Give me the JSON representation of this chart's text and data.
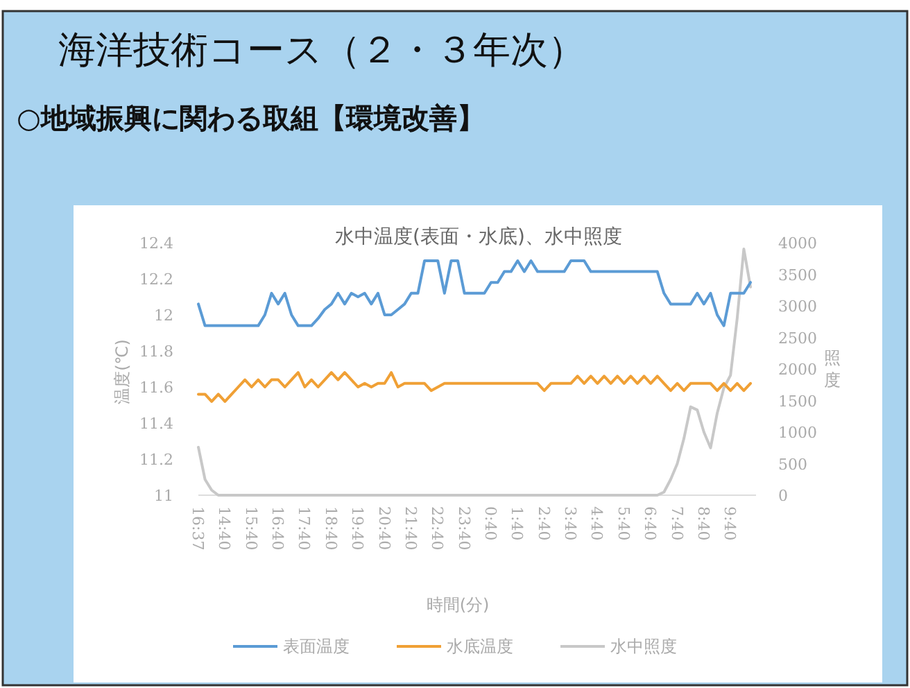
{
  "chart_data": {
    "type": "line",
    "title": "海洋技術コース（２・３年次）",
    "subtitle": "○地域振興に関わる取組【環境改善】",
    "annotations": [
      "水中温度(表面・水底)、水中照度"
    ],
    "xlabel": "時間(分)",
    "ylabel": "温度(℃)",
    "y2label": "照度",
    "legend": "bottom",
    "categories": [
      "16:37",
      null,
      null,
      null,
      "14:40",
      null,
      null,
      null,
      "15:40",
      null,
      null,
      null,
      "16:40",
      null,
      null,
      null,
      "17:40",
      null,
      null,
      null,
      "18:40",
      null,
      null,
      null,
      "19:40",
      null,
      null,
      null,
      "20:40",
      null,
      null,
      null,
      "21:40",
      null,
      null,
      null,
      "22:40",
      null,
      null,
      null,
      "23:40",
      null,
      null,
      null,
      "0:40",
      null,
      null,
      null,
      "1:40",
      null,
      null,
      null,
      "2:40",
      null,
      null,
      null,
      "3:40",
      null,
      null,
      null,
      "4:40",
      null,
      null,
      null,
      "5:40",
      null,
      null,
      null,
      "6:40",
      null,
      null,
      null,
      "7:40",
      null,
      null,
      null,
      "8:40",
      null,
      null,
      null,
      "9:40",
      null,
      null,
      null
    ],
    "ylim": [
      11,
      12.4
    ],
    "yticks": [
      11,
      11.2,
      11.4,
      11.6,
      11.8,
      12,
      12.2,
      12.4
    ],
    "y2lim": [
      0,
      4000
    ],
    "y2ticks": [
      0,
      500,
      1000,
      1500,
      2000,
      2500,
      3000,
      3500,
      4000
    ],
    "series": [
      {
        "name": "表面温度",
        "color": "#5b9bd5",
        "values": [
          12.06,
          11.94,
          11.94,
          11.94,
          11.94,
          11.94,
          11.94,
          11.94,
          11.94,
          11.94,
          12.0,
          12.12,
          12.06,
          12.12,
          12.0,
          11.94,
          11.94,
          11.94,
          11.98,
          12.03,
          12.06,
          12.12,
          12.06,
          12.12,
          12.1,
          12.12,
          12.06,
          12.12,
          12.0,
          12.0,
          12.03,
          12.06,
          12.12,
          12.12,
          12.3,
          12.3,
          12.3,
          12.12,
          12.3,
          12.3,
          12.12,
          12.12,
          12.12,
          12.12,
          12.18,
          12.18,
          12.24,
          12.24,
          12.3,
          12.24,
          12.3,
          12.24,
          12.24,
          12.24,
          12.24,
          12.24,
          12.3,
          12.3,
          12.3,
          12.24,
          12.24,
          12.24,
          12.24,
          12.24,
          12.24,
          12.24,
          12.24,
          12.24,
          12.24,
          12.24,
          12.12,
          12.06,
          12.06,
          12.06,
          12.06,
          12.12,
          12.06,
          12.12,
          12.0,
          11.94,
          12.12,
          12.12,
          12.12,
          12.18
        ]
      },
      {
        "name": "水底温度",
        "color": "#f0a035",
        "values": [
          11.56,
          11.56,
          11.52,
          11.56,
          11.52,
          11.56,
          11.6,
          11.64,
          11.6,
          11.64,
          11.6,
          11.64,
          11.64,
          11.6,
          11.64,
          11.68,
          11.6,
          11.64,
          11.6,
          11.64,
          11.68,
          11.64,
          11.68,
          11.64,
          11.6,
          11.62,
          11.6,
          11.62,
          11.62,
          11.68,
          11.6,
          11.62,
          11.62,
          11.62,
          11.62,
          11.58,
          11.6,
          11.62,
          11.62,
          11.62,
          11.62,
          11.62,
          11.62,
          11.62,
          11.62,
          11.62,
          11.62,
          11.62,
          11.62,
          11.62,
          11.62,
          11.62,
          11.58,
          11.62,
          11.62,
          11.62,
          11.62,
          11.66,
          11.62,
          11.66,
          11.62,
          11.66,
          11.62,
          11.66,
          11.62,
          11.66,
          11.62,
          11.66,
          11.62,
          11.66,
          11.62,
          11.58,
          11.62,
          11.58,
          11.62,
          11.62,
          11.62,
          11.62,
          11.58,
          11.62,
          11.58,
          11.62,
          11.58,
          11.62
        ]
      },
      {
        "name": "水中照度",
        "color": "#c8c8c8",
        "axis": "y2",
        "values": [
          760,
          250,
          80,
          0,
          0,
          0,
          0,
          0,
          0,
          0,
          0,
          0,
          0,
          0,
          0,
          0,
          0,
          0,
          0,
          0,
          0,
          0,
          0,
          0,
          0,
          0,
          0,
          0,
          0,
          0,
          0,
          0,
          0,
          0,
          0,
          0,
          0,
          0,
          0,
          0,
          0,
          0,
          0,
          0,
          0,
          0,
          0,
          0,
          0,
          0,
          0,
          0,
          0,
          0,
          0,
          0,
          0,
          0,
          0,
          0,
          0,
          0,
          0,
          0,
          0,
          0,
          0,
          0,
          0,
          0,
          50,
          250,
          500,
          900,
          1400,
          1350,
          1000,
          750,
          1300,
          1700,
          1900,
          2800,
          3900,
          3300
        ]
      }
    ]
  }
}
